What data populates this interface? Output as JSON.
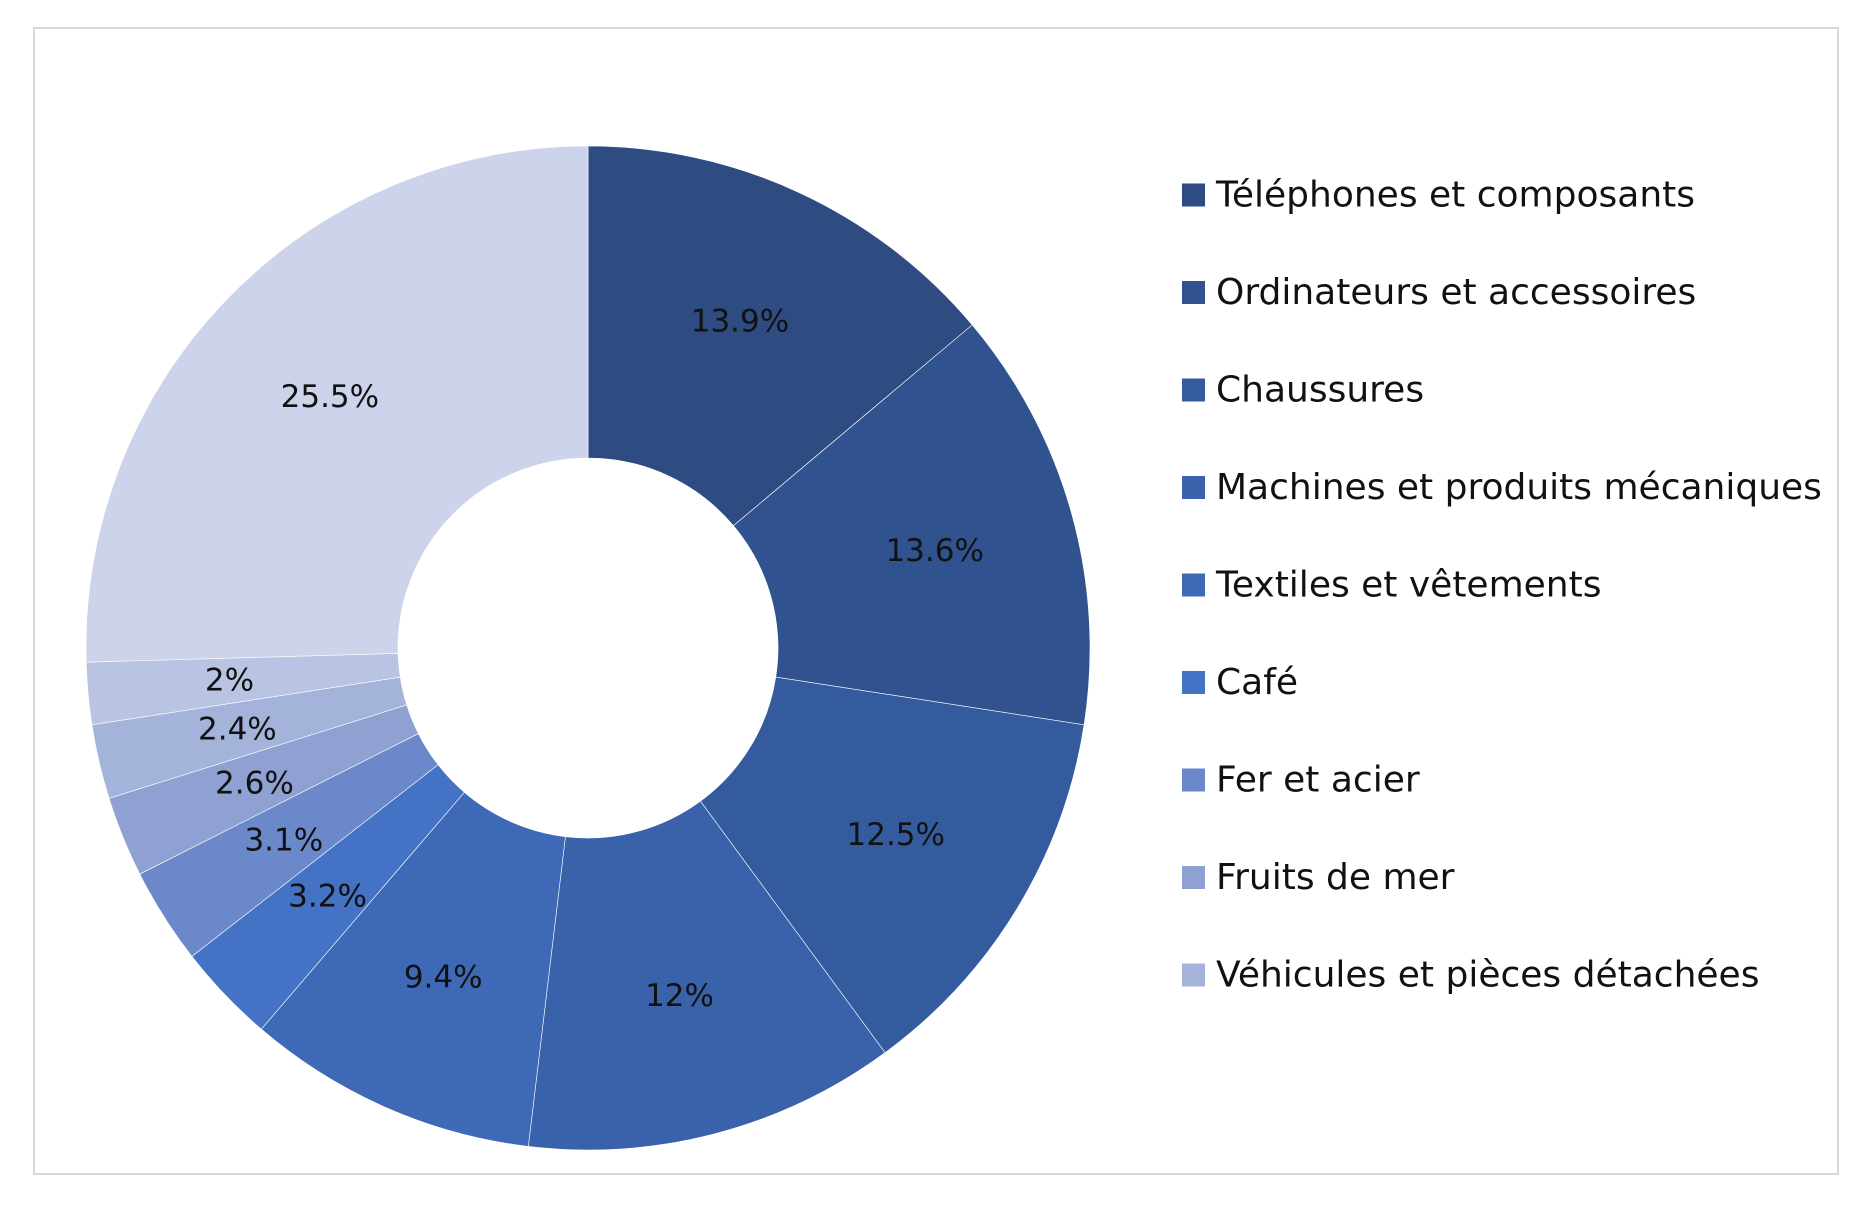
{
  "chart_data": {
    "type": "pie",
    "style": "donut",
    "legend_position": "right",
    "title": "",
    "categories": [
      "Téléphones et composants",
      "Ordinateurs et accessoires",
      "Chaussures",
      "Machines et produits mécaniques",
      "Textiles et vêtements",
      "Café",
      "Fer et acier",
      "Fruits de mer",
      "Véhicules et pièces détachées",
      "",
      ""
    ],
    "values": [
      13.9,
      13.6,
      12.5,
      12,
      9.4,
      3.2,
      3.1,
      2.6,
      2.4,
      2,
      25.5
    ],
    "labels": [
      "13.9%",
      "13.6%",
      "12.5%",
      "12%",
      "9.4%",
      "3.2%",
      "3.1%",
      "2.6%",
      "2.4%",
      "2%",
      "25.5%"
    ],
    "colors": [
      "#2E4B82",
      "#30538F",
      "#345B9D",
      "#3962AA",
      "#3E69B6",
      "#4472C4",
      "#6B88CB",
      "#8EA1D2",
      "#A4B3DA",
      "#B8C4E2",
      "#CDD3EA"
    ],
    "legend": [
      "Téléphones et composants",
      "Ordinateurs et accessoires",
      "Chaussures",
      "Machines et produits mécaniques",
      "Textiles et vêtements",
      "Café",
      "Fer et acier",
      "Fruits de mer",
      "Véhicules et pièces détachées"
    ]
  }
}
